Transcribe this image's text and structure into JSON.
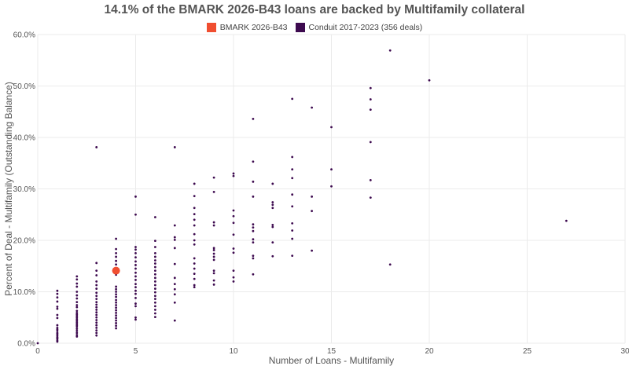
{
  "chart_data": {
    "type": "scatter",
    "title": "14.1% of the BMARK 2026-B43 loans are backed by Multifamily collateral",
    "xlabel": "Number of Loans - Multifamily",
    "ylabel": "Percent of Deal - Multifamily (Outstanding Balance)",
    "xlim": [
      0,
      30
    ],
    "ylim": [
      0,
      60
    ],
    "x_ticks": [
      0,
      5,
      10,
      15,
      20,
      25,
      30
    ],
    "y_ticks": [
      0,
      10,
      20,
      30,
      40,
      50,
      60
    ],
    "x_tick_labels": [
      "0",
      "5",
      "10",
      "15",
      "20",
      "25",
      "30"
    ],
    "y_tick_labels": [
      "0.0%",
      "10.0%",
      "20.0%",
      "30.0%",
      "40.0%",
      "50.0%",
      "60.0%"
    ],
    "grid": true,
    "legend_position": "top-center",
    "series": [
      {
        "name": "BMARK 2026-B43",
        "color": "#f04e30",
        "points": [
          [
            4,
            14.1
          ]
        ]
      },
      {
        "name": "Conduit 2017-2023 (356 deals)",
        "color": "#3d0a4f",
        "points": [
          [
            0,
            0
          ],
          [
            1,
            10.2
          ],
          [
            1,
            9.6
          ],
          [
            1,
            8.9
          ],
          [
            1,
            8.1
          ],
          [
            1,
            7.1
          ],
          [
            1,
            6.7
          ],
          [
            1,
            5.5
          ],
          [
            1,
            4.9
          ],
          [
            1,
            3.5
          ],
          [
            1,
            3.0
          ],
          [
            1,
            2.7
          ],
          [
            1,
            2.4
          ],
          [
            1,
            2.0
          ],
          [
            1,
            1.8
          ],
          [
            1,
            1.5
          ],
          [
            1,
            1.2
          ],
          [
            1,
            1.0
          ],
          [
            1,
            0.8
          ],
          [
            1,
            0.5
          ],
          [
            1,
            0.3
          ],
          [
            2,
            13.0
          ],
          [
            2,
            12.4
          ],
          [
            2,
            11.6
          ],
          [
            2,
            11.0
          ],
          [
            2,
            10.0
          ],
          [
            2,
            9.3
          ],
          [
            2,
            8.7
          ],
          [
            2,
            8.0
          ],
          [
            2,
            7.4
          ],
          [
            2,
            7.0
          ],
          [
            2,
            6.3
          ],
          [
            2,
            5.9
          ],
          [
            2,
            5.6
          ],
          [
            2,
            5.3
          ],
          [
            2,
            5.0
          ],
          [
            2,
            4.7
          ],
          [
            2,
            4.4
          ],
          [
            2,
            4.1
          ],
          [
            2,
            3.8
          ],
          [
            2,
            3.5
          ],
          [
            2,
            3.2
          ],
          [
            2,
            2.8
          ],
          [
            2,
            2.4
          ],
          [
            2,
            2.0
          ],
          [
            2,
            1.6
          ],
          [
            2,
            1.3
          ],
          [
            3,
            38.1
          ],
          [
            3,
            15.6
          ],
          [
            3,
            14.1
          ],
          [
            3,
            13.2
          ],
          [
            3,
            12.0
          ],
          [
            3,
            11.3
          ],
          [
            3,
            10.6
          ],
          [
            3,
            9.8
          ],
          [
            3,
            9.2
          ],
          [
            3,
            8.6
          ],
          [
            3,
            8.0
          ],
          [
            3,
            7.5
          ],
          [
            3,
            7.0
          ],
          [
            3,
            6.5
          ],
          [
            3,
            6.0
          ],
          [
            3,
            5.5
          ],
          [
            3,
            5.0
          ],
          [
            3,
            4.5
          ],
          [
            3,
            4.0
          ],
          [
            3,
            3.5
          ],
          [
            3,
            3.0
          ],
          [
            3,
            2.5
          ],
          [
            3,
            2.0
          ],
          [
            3,
            1.5
          ],
          [
            4,
            20.3
          ],
          [
            4,
            18.3
          ],
          [
            4,
            17.5
          ],
          [
            4,
            16.8
          ],
          [
            4,
            16.0
          ],
          [
            4,
            15.3
          ],
          [
            4,
            13.3
          ],
          [
            4,
            11.0
          ],
          [
            4,
            10.5
          ],
          [
            4,
            10.0
          ],
          [
            4,
            9.5
          ],
          [
            4,
            9.0
          ],
          [
            4,
            8.4
          ],
          [
            4,
            7.9
          ],
          [
            4,
            7.4
          ],
          [
            4,
            6.9
          ],
          [
            4,
            6.4
          ],
          [
            4,
            5.9
          ],
          [
            4,
            5.4
          ],
          [
            4,
            4.9
          ],
          [
            4,
            4.4
          ],
          [
            4,
            3.9
          ],
          [
            4,
            3.4
          ],
          [
            4,
            2.9
          ],
          [
            5,
            28.5
          ],
          [
            5,
            25.0
          ],
          [
            5,
            18.7
          ],
          [
            5,
            18.2
          ],
          [
            5,
            17.5
          ],
          [
            5,
            16.7
          ],
          [
            5,
            15.9
          ],
          [
            5,
            15.2
          ],
          [
            5,
            14.5
          ],
          [
            5,
            13.7
          ],
          [
            5,
            13.0
          ],
          [
            5,
            12.3
          ],
          [
            5,
            11.5
          ],
          [
            5,
            10.9
          ],
          [
            5,
            10.2
          ],
          [
            5,
            9.6
          ],
          [
            5,
            8.8
          ],
          [
            5,
            7.7
          ],
          [
            5,
            7.2
          ],
          [
            5,
            5.0
          ],
          [
            5,
            4.6
          ],
          [
            6,
            24.5
          ],
          [
            6,
            19.9
          ],
          [
            6,
            18.7
          ],
          [
            6,
            17.5
          ],
          [
            6,
            16.8
          ],
          [
            6,
            16.1
          ],
          [
            6,
            15.5
          ],
          [
            6,
            14.8
          ],
          [
            6,
            14.1
          ],
          [
            6,
            13.4
          ],
          [
            6,
            12.7
          ],
          [
            6,
            12.0
          ],
          [
            6,
            11.3
          ],
          [
            6,
            10.6
          ],
          [
            6,
            9.9
          ],
          [
            6,
            9.2
          ],
          [
            6,
            8.6
          ],
          [
            6,
            7.9
          ],
          [
            6,
            7.2
          ],
          [
            6,
            6.5
          ],
          [
            6,
            5.8
          ],
          [
            6,
            5.1
          ],
          [
            7,
            38.1
          ],
          [
            7,
            22.9
          ],
          [
            7,
            20.6
          ],
          [
            7,
            20.1
          ],
          [
            7,
            18.5
          ],
          [
            7,
            15.4
          ],
          [
            7,
            12.7
          ],
          [
            7,
            11.5
          ],
          [
            7,
            10.5
          ],
          [
            7,
            9.5
          ],
          [
            7,
            7.9
          ],
          [
            7,
            4.4
          ],
          [
            8,
            31.0
          ],
          [
            8,
            28.6
          ],
          [
            8,
            26.3
          ],
          [
            8,
            25.1
          ],
          [
            8,
            24.0
          ],
          [
            8,
            22.9
          ],
          [
            8,
            21.2
          ],
          [
            8,
            20.0
          ],
          [
            8,
            19.2
          ],
          [
            8,
            16.5
          ],
          [
            8,
            15.5
          ],
          [
            8,
            14.5
          ],
          [
            8,
            13.5
          ],
          [
            8,
            12.5
          ],
          [
            8,
            11.3
          ],
          [
            8,
            10.9
          ],
          [
            9,
            32.2
          ],
          [
            9,
            29.4
          ],
          [
            9,
            23.5
          ],
          [
            9,
            22.9
          ],
          [
            9,
            18.5
          ],
          [
            9,
            18.1
          ],
          [
            9,
            17.4
          ],
          [
            9,
            16.8
          ],
          [
            9,
            16.2
          ],
          [
            9,
            14.1
          ],
          [
            9,
            13.6
          ],
          [
            9,
            12.2
          ],
          [
            9,
            11.4
          ],
          [
            10,
            33.0
          ],
          [
            10,
            32.5
          ],
          [
            10,
            25.8
          ],
          [
            10,
            24.7
          ],
          [
            10,
            23.4
          ],
          [
            10,
            21.1
          ],
          [
            10,
            18.4
          ],
          [
            10,
            17.6
          ],
          [
            10,
            14.1
          ],
          [
            10,
            12.8
          ],
          [
            10,
            12.0
          ],
          [
            11,
            43.6
          ],
          [
            11,
            35.3
          ],
          [
            11,
            31.4
          ],
          [
            11,
            28.5
          ],
          [
            11,
            23.1
          ],
          [
            11,
            22.5
          ],
          [
            11,
            21.8
          ],
          [
            11,
            20.2
          ],
          [
            11,
            19.6
          ],
          [
            11,
            17.0
          ],
          [
            11,
            16.5
          ],
          [
            11,
            13.4
          ],
          [
            12,
            31.0
          ],
          [
            12,
            27.4
          ],
          [
            12,
            26.9
          ],
          [
            12,
            26.3
          ],
          [
            12,
            23.0
          ],
          [
            12,
            22.6
          ],
          [
            12,
            19.6
          ],
          [
            12,
            16.9
          ],
          [
            13,
            47.5
          ],
          [
            13,
            36.2
          ],
          [
            13,
            33.8
          ],
          [
            13,
            32.1
          ],
          [
            13,
            28.9
          ],
          [
            13,
            26.6
          ],
          [
            13,
            23.3
          ],
          [
            13,
            21.9
          ],
          [
            13,
            20.3
          ],
          [
            13,
            17.0
          ],
          [
            14,
            45.8
          ],
          [
            14,
            28.5
          ],
          [
            14,
            25.7
          ],
          [
            14,
            18.0
          ],
          [
            15,
            42.0
          ],
          [
            15,
            33.8
          ],
          [
            15,
            30.5
          ],
          [
            17,
            49.6
          ],
          [
            17,
            47.4
          ],
          [
            17,
            45.4
          ],
          [
            17,
            39.1
          ],
          [
            17,
            31.7
          ],
          [
            17,
            28.3
          ],
          [
            18,
            56.9
          ],
          [
            18,
            15.3
          ],
          [
            20,
            51.1
          ],
          [
            27,
            23.8
          ]
        ]
      }
    ]
  }
}
